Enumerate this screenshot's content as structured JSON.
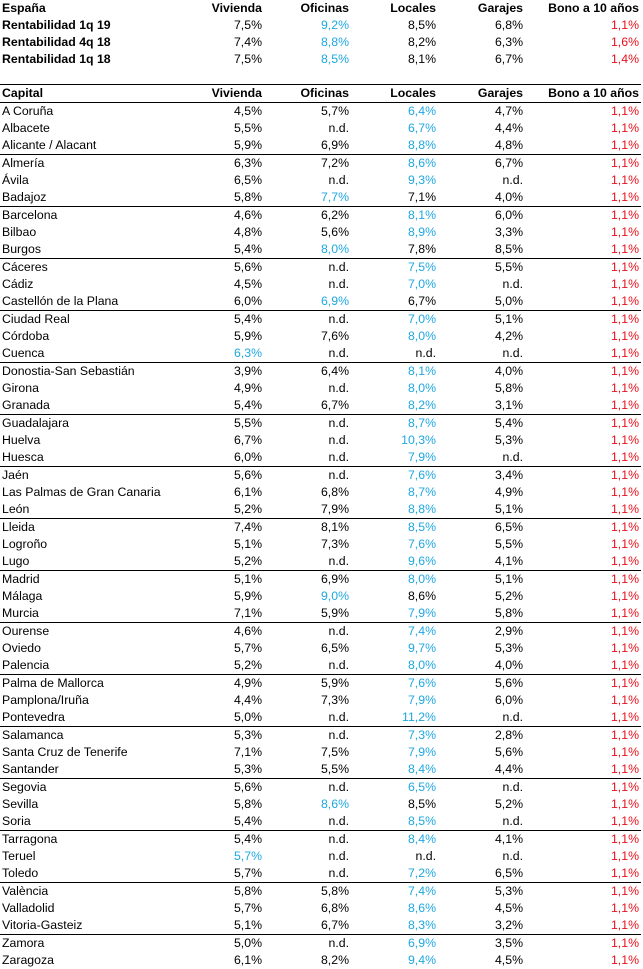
{
  "colors": {
    "blue": "#1ea7e1",
    "red": "#e8101a",
    "black": "#000000"
  },
  "spain": {
    "header": [
      "España",
      "Vivienda",
      "Oficinas",
      "Locales",
      "Garajes",
      "Bono a 10 años"
    ],
    "rows": [
      {
        "name": "Rentabilidad 1q 19",
        "vals": [
          "7,5%",
          "9,2%",
          "8,5%",
          "6,8%",
          "1,1%"
        ],
        "colors": [
          "black",
          "blue",
          "black",
          "black",
          "red"
        ]
      },
      {
        "name": "Rentabilidad 4q 18",
        "vals": [
          "7,4%",
          "8,8%",
          "8,2%",
          "6,3%",
          "1,6%"
        ],
        "colors": [
          "black",
          "blue",
          "black",
          "black",
          "red"
        ]
      },
      {
        "name": "Rentabilidad 1q 18",
        "vals": [
          "7,5%",
          "8,5%",
          "8,1%",
          "6,7%",
          "1,4%"
        ],
        "colors": [
          "black",
          "blue",
          "black",
          "black",
          "red"
        ]
      }
    ]
  },
  "capitals": {
    "header": [
      "Capital",
      "Vivienda",
      "Oficinas",
      "Locales",
      "Garajes",
      "Bono a 10 años"
    ],
    "rows": [
      {
        "name": "A Coruña",
        "vals": [
          "4,5%",
          "5,7%",
          "6,4%",
          "4,7%",
          "1,1%"
        ],
        "colors": [
          "black",
          "black",
          "blue",
          "black",
          "red"
        ]
      },
      {
        "name": "Albacete",
        "vals": [
          "5,5%",
          "n.d.",
          "6,7%",
          "4,4%",
          "1,1%"
        ],
        "colors": [
          "black",
          "black",
          "blue",
          "black",
          "red"
        ]
      },
      {
        "name": "Alicante / Alacant",
        "vals": [
          "5,9%",
          "6,9%",
          "8,8%",
          "4,8%",
          "1,1%"
        ],
        "colors": [
          "black",
          "black",
          "blue",
          "black",
          "red"
        ]
      },
      {
        "name": "Almería",
        "vals": [
          "6,3%",
          "7,2%",
          "8,6%",
          "6,7%",
          "1,1%"
        ],
        "colors": [
          "black",
          "black",
          "blue",
          "black",
          "red"
        ]
      },
      {
        "name": "Ávila",
        "vals": [
          "6,5%",
          "n.d.",
          "9,3%",
          "n.d.",
          "1,1%"
        ],
        "colors": [
          "black",
          "black",
          "blue",
          "black",
          "red"
        ]
      },
      {
        "name": "Badajoz",
        "vals": [
          "5,8%",
          "7,7%",
          "7,1%",
          "4,0%",
          "1,1%"
        ],
        "colors": [
          "black",
          "blue",
          "black",
          "black",
          "red"
        ]
      },
      {
        "name": "Barcelona",
        "vals": [
          "4,6%",
          "6,2%",
          "8,1%",
          "6,0%",
          "1,1%"
        ],
        "colors": [
          "black",
          "black",
          "blue",
          "black",
          "red"
        ]
      },
      {
        "name": "Bilbao",
        "vals": [
          "4,8%",
          "5,6%",
          "8,9%",
          "3,3%",
          "1,1%"
        ],
        "colors": [
          "black",
          "black",
          "blue",
          "black",
          "red"
        ]
      },
      {
        "name": "Burgos",
        "vals": [
          "5,4%",
          "8,0%",
          "7,8%",
          "8,5%",
          "1,1%"
        ],
        "colors": [
          "black",
          "blue",
          "black",
          "black",
          "red"
        ]
      },
      {
        "name": "Cáceres",
        "vals": [
          "5,6%",
          "n.d.",
          "7,5%",
          "5,5%",
          "1,1%"
        ],
        "colors": [
          "black",
          "black",
          "blue",
          "black",
          "red"
        ]
      },
      {
        "name": "Cádiz",
        "vals": [
          "4,5%",
          "n.d.",
          "7,0%",
          "n.d.",
          "1,1%"
        ],
        "colors": [
          "black",
          "black",
          "blue",
          "black",
          "red"
        ]
      },
      {
        "name": "Castellón de la Plana",
        "vals": [
          "6,0%",
          "6,9%",
          "6,7%",
          "5,0%",
          "1,1%"
        ],
        "colors": [
          "black",
          "blue",
          "black",
          "black",
          "red"
        ]
      },
      {
        "name": "Ciudad Real",
        "vals": [
          "5,4%",
          "n.d.",
          "7,0%",
          "5,1%",
          "1,1%"
        ],
        "colors": [
          "black",
          "black",
          "blue",
          "black",
          "red"
        ]
      },
      {
        "name": "Córdoba",
        "vals": [
          "5,9%",
          "7,6%",
          "8,0%",
          "4,2%",
          "1,1%"
        ],
        "colors": [
          "black",
          "black",
          "blue",
          "black",
          "red"
        ]
      },
      {
        "name": "Cuenca",
        "vals": [
          "6,3%",
          "n.d.",
          "n.d.",
          "n.d.",
          "1,1%"
        ],
        "colors": [
          "blue",
          "black",
          "black",
          "black",
          "red"
        ]
      },
      {
        "name": "Donostia-San Sebastián",
        "vals": [
          "3,9%",
          "6,4%",
          "8,1%",
          "4,0%",
          "1,1%"
        ],
        "colors": [
          "black",
          "black",
          "blue",
          "black",
          "red"
        ]
      },
      {
        "name": "Girona",
        "vals": [
          "4,9%",
          "n.d.",
          "8,0%",
          "5,8%",
          "1,1%"
        ],
        "colors": [
          "black",
          "black",
          "blue",
          "black",
          "red"
        ]
      },
      {
        "name": "Granada",
        "vals": [
          "5,4%",
          "6,7%",
          "8,2%",
          "3,1%",
          "1,1%"
        ],
        "colors": [
          "black",
          "black",
          "blue",
          "black",
          "red"
        ]
      },
      {
        "name": "Guadalajara",
        "vals": [
          "5,5%",
          "n.d.",
          "8,7%",
          "5,4%",
          "1,1%"
        ],
        "colors": [
          "black",
          "black",
          "blue",
          "black",
          "red"
        ]
      },
      {
        "name": "Huelva",
        "vals": [
          "6,7%",
          "n.d.",
          "10,3%",
          "5,3%",
          "1,1%"
        ],
        "colors": [
          "black",
          "black",
          "blue",
          "black",
          "red"
        ]
      },
      {
        "name": "Huesca",
        "vals": [
          "6,0%",
          "n.d.",
          "7,9%",
          "n.d.",
          "1,1%"
        ],
        "colors": [
          "black",
          "black",
          "blue",
          "black",
          "red"
        ]
      },
      {
        "name": "Jaén",
        "vals": [
          "5,6%",
          "n.d.",
          "7,6%",
          "3,4%",
          "1,1%"
        ],
        "colors": [
          "black",
          "black",
          "blue",
          "black",
          "red"
        ]
      },
      {
        "name": "Las Palmas de Gran Canaria",
        "vals": [
          "6,1%",
          "6,8%",
          "8,7%",
          "4,9%",
          "1,1%"
        ],
        "colors": [
          "black",
          "black",
          "blue",
          "black",
          "red"
        ]
      },
      {
        "name": "León",
        "vals": [
          "5,2%",
          "7,9%",
          "8,8%",
          "5,1%",
          "1,1%"
        ],
        "colors": [
          "black",
          "black",
          "blue",
          "black",
          "red"
        ]
      },
      {
        "name": "Lleida",
        "vals": [
          "7,4%",
          "8,1%",
          "8,5%",
          "6,5%",
          "1,1%"
        ],
        "colors": [
          "black",
          "black",
          "blue",
          "black",
          "red"
        ]
      },
      {
        "name": "Logroño",
        "vals": [
          "5,1%",
          "7,3%",
          "7,6%",
          "5,5%",
          "1,1%"
        ],
        "colors": [
          "black",
          "black",
          "blue",
          "black",
          "red"
        ]
      },
      {
        "name": "Lugo",
        "vals": [
          "5,2%",
          "n.d.",
          "9,6%",
          "4,1%",
          "1,1%"
        ],
        "colors": [
          "black",
          "black",
          "blue",
          "black",
          "red"
        ]
      },
      {
        "name": "Madrid",
        "vals": [
          "5,1%",
          "6,9%",
          "8,0%",
          "5,1%",
          "1,1%"
        ],
        "colors": [
          "black",
          "black",
          "blue",
          "black",
          "red"
        ]
      },
      {
        "name": "Málaga",
        "vals": [
          "5,9%",
          "9,0%",
          "8,6%",
          "5,2%",
          "1,1%"
        ],
        "colors": [
          "black",
          "blue",
          "black",
          "black",
          "red"
        ]
      },
      {
        "name": "Murcia",
        "vals": [
          "7,1%",
          "5,9%",
          "7,9%",
          "5,8%",
          "1,1%"
        ],
        "colors": [
          "black",
          "black",
          "blue",
          "black",
          "red"
        ]
      },
      {
        "name": "Ourense",
        "vals": [
          "4,6%",
          "n.d.",
          "7,4%",
          "2,9%",
          "1,1%"
        ],
        "colors": [
          "black",
          "black",
          "blue",
          "black",
          "red"
        ]
      },
      {
        "name": "Oviedo",
        "vals": [
          "5,7%",
          "6,5%",
          "9,7%",
          "5,3%",
          "1,1%"
        ],
        "colors": [
          "black",
          "black",
          "blue",
          "black",
          "red"
        ]
      },
      {
        "name": "Palencia",
        "vals": [
          "5,2%",
          "n.d.",
          "8,0%",
          "4,0%",
          "1,1%"
        ],
        "colors": [
          "black",
          "black",
          "blue",
          "black",
          "red"
        ]
      },
      {
        "name": "Palma de Mallorca",
        "vals": [
          "4,9%",
          "5,9%",
          "7,6%",
          "5,6%",
          "1,1%"
        ],
        "colors": [
          "black",
          "black",
          "blue",
          "black",
          "red"
        ]
      },
      {
        "name": "Pamplona/Iruña",
        "vals": [
          "4,4%",
          "7,3%",
          "7,9%",
          "6,0%",
          "1,1%"
        ],
        "colors": [
          "black",
          "black",
          "blue",
          "black",
          "red"
        ]
      },
      {
        "name": "Pontevedra",
        "vals": [
          "5,0%",
          "n.d.",
          "11,2%",
          "n.d.",
          "1,1%"
        ],
        "colors": [
          "black",
          "black",
          "blue",
          "black",
          "red"
        ]
      },
      {
        "name": "Salamanca",
        "vals": [
          "5,3%",
          "n.d.",
          "7,3%",
          "2,8%",
          "1,1%"
        ],
        "colors": [
          "black",
          "black",
          "blue",
          "black",
          "red"
        ]
      },
      {
        "name": "Santa Cruz de Tenerife",
        "vals": [
          "7,1%",
          "7,5%",
          "7,9%",
          "5,6%",
          "1,1%"
        ],
        "colors": [
          "black",
          "black",
          "blue",
          "black",
          "red"
        ]
      },
      {
        "name": "Santander",
        "vals": [
          "5,3%",
          "5,5%",
          "8,4%",
          "4,4%",
          "1,1%"
        ],
        "colors": [
          "black",
          "black",
          "blue",
          "black",
          "red"
        ]
      },
      {
        "name": "Segovia",
        "vals": [
          "5,6%",
          "n.d.",
          "6,5%",
          "n.d.",
          "1,1%"
        ],
        "colors": [
          "black",
          "black",
          "blue",
          "black",
          "red"
        ]
      },
      {
        "name": "Sevilla",
        "vals": [
          "5,8%",
          "8,6%",
          "8,5%",
          "5,2%",
          "1,1%"
        ],
        "colors": [
          "black",
          "blue",
          "black",
          "black",
          "red"
        ]
      },
      {
        "name": "Soria",
        "vals": [
          "5,4%",
          "n.d.",
          "8,5%",
          "n.d.",
          "1,1%"
        ],
        "colors": [
          "black",
          "black",
          "blue",
          "black",
          "red"
        ]
      },
      {
        "name": "Tarragona",
        "vals": [
          "5,4%",
          "n.d.",
          "8,4%",
          "4,1%",
          "1,1%"
        ],
        "colors": [
          "black",
          "black",
          "blue",
          "black",
          "red"
        ]
      },
      {
        "name": "Teruel",
        "vals": [
          "5,7%",
          "n.d.",
          "n.d.",
          "n.d.",
          "1,1%"
        ],
        "colors": [
          "blue",
          "black",
          "black",
          "black",
          "red"
        ]
      },
      {
        "name": "Toledo",
        "vals": [
          "5,7%",
          "n.d.",
          "7,2%",
          "6,5%",
          "1,1%"
        ],
        "colors": [
          "black",
          "black",
          "blue",
          "black",
          "red"
        ]
      },
      {
        "name": "València",
        "vals": [
          "5,8%",
          "5,8%",
          "7,4%",
          "5,3%",
          "1,1%"
        ],
        "colors": [
          "black",
          "black",
          "blue",
          "black",
          "red"
        ]
      },
      {
        "name": "Valladolid",
        "vals": [
          "5,7%",
          "6,8%",
          "8,6%",
          "4,5%",
          "1,1%"
        ],
        "colors": [
          "black",
          "black",
          "blue",
          "black",
          "red"
        ]
      },
      {
        "name": "Vitoria-Gasteiz",
        "vals": [
          "5,1%",
          "6,7%",
          "8,3%",
          "3,2%",
          "1,1%"
        ],
        "colors": [
          "black",
          "black",
          "blue",
          "black",
          "red"
        ]
      },
      {
        "name": "Zamora",
        "vals": [
          "5,0%",
          "n.d.",
          "6,9%",
          "3,5%",
          "1,1%"
        ],
        "colors": [
          "black",
          "black",
          "blue",
          "black",
          "red"
        ]
      },
      {
        "name": "Zaragoza",
        "vals": [
          "6,1%",
          "8,2%",
          "9,4%",
          "4,5%",
          "1,1%"
        ],
        "colors": [
          "black",
          "black",
          "blue",
          "black",
          "red"
        ]
      }
    ]
  }
}
